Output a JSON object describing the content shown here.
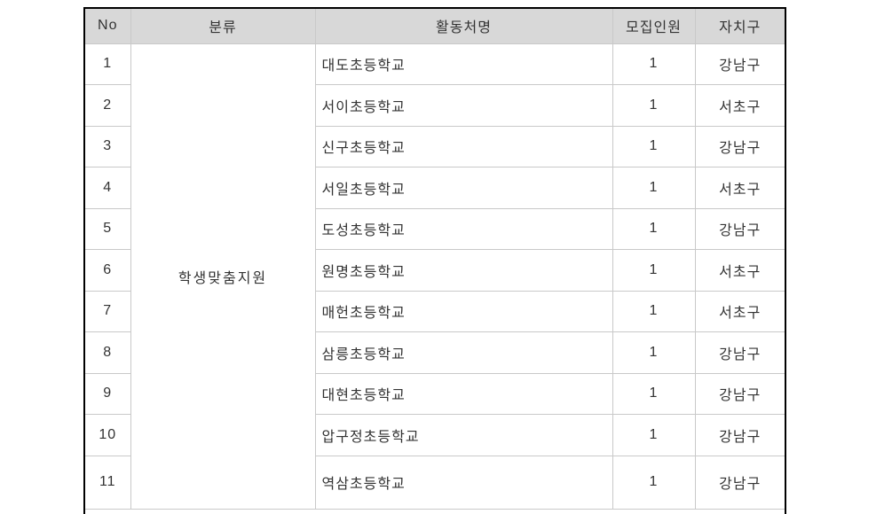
{
  "table": {
    "headers": [
      "No",
      "분류",
      "활동처명",
      "모집인원",
      "자치구"
    ],
    "category": "학생맞춤지원",
    "rows": [
      {
        "no": "1",
        "name": "대도초등학교",
        "count": "1",
        "district": "강남구"
      },
      {
        "no": "2",
        "name": "서이초등학교",
        "count": "1",
        "district": "서초구"
      },
      {
        "no": "3",
        "name": "신구초등학교",
        "count": "1",
        "district": "강남구"
      },
      {
        "no": "4",
        "name": "서일초등학교",
        "count": "1",
        "district": "서초구"
      },
      {
        "no": "5",
        "name": "도성초등학교",
        "count": "1",
        "district": "강남구"
      },
      {
        "no": "6",
        "name": "원명초등학교",
        "count": "1",
        "district": "서초구"
      },
      {
        "no": "7",
        "name": "매헌초등학교",
        "count": "1",
        "district": "서초구"
      },
      {
        "no": "8",
        "name": "삼릉초등학교",
        "count": "1",
        "district": "강남구"
      },
      {
        "no": "9",
        "name": "대현초등학교",
        "count": "1",
        "district": "강남구"
      },
      {
        "no": "10",
        "name": "압구정초등학교",
        "count": "1",
        "district": "강남구"
      },
      {
        "no": "11",
        "name": "역삼초등학교",
        "count": "1",
        "district": "강남구"
      }
    ],
    "colors": {
      "outer_border": "#000000",
      "grid_line": "#c9c9c9",
      "header_background": "#d8d8d8",
      "text": "#333333",
      "page_background": "#ffffff"
    }
  }
}
